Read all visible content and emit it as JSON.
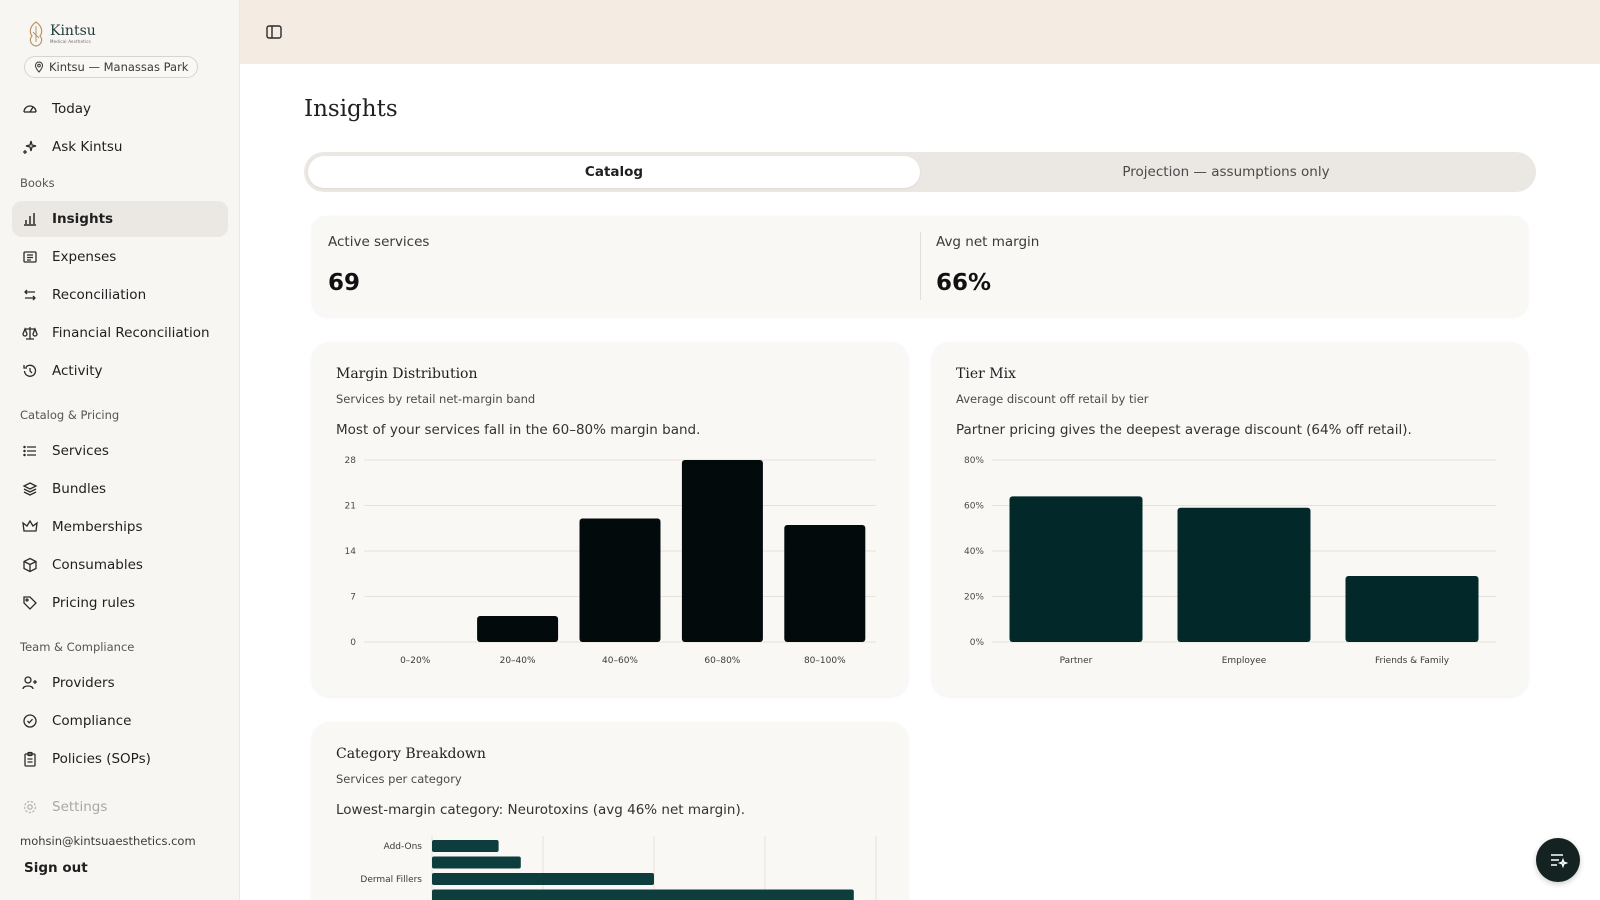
{
  "brand": {
    "name": "Kintsu",
    "tagline": "Medical Aesthetics",
    "location": "Kintsu — Manassas Park"
  },
  "sidebar": {
    "top_items": [
      {
        "label": "Today",
        "icon": "gauge-icon"
      },
      {
        "label": "Ask Kintsu",
        "icon": "sparkle-icon"
      }
    ],
    "sections": [
      {
        "label": "Books",
        "items": [
          {
            "label": "Insights",
            "icon": "bar-chart-icon",
            "active": true
          },
          {
            "label": "Expenses",
            "icon": "receipt-icon"
          },
          {
            "label": "Reconciliation",
            "icon": "arrows-swap-icon"
          },
          {
            "label": "Financial Reconciliation",
            "icon": "scale-icon"
          },
          {
            "label": "Activity",
            "icon": "history-icon"
          }
        ]
      },
      {
        "label": "Catalog & Pricing",
        "items": [
          {
            "label": "Services",
            "icon": "list-icon"
          },
          {
            "label": "Bundles",
            "icon": "layers-icon"
          },
          {
            "label": "Memberships",
            "icon": "crown-icon"
          },
          {
            "label": "Consumables",
            "icon": "box-icon"
          },
          {
            "label": "Pricing rules",
            "icon": "tag-icon"
          }
        ]
      },
      {
        "label": "Team & Compliance",
        "items": [
          {
            "label": "Providers",
            "icon": "user-plus-icon"
          },
          {
            "label": "Compliance",
            "icon": "badge-check-icon"
          },
          {
            "label": "Policies (SOPs)",
            "icon": "clipboard-icon"
          }
        ]
      }
    ],
    "settings_label": "Settings",
    "email": "mohsin@kintsuaesthetics.com",
    "signout_label": "Sign out"
  },
  "main": {
    "title": "Insights",
    "tabs": [
      {
        "label": "Catalog",
        "active": true
      },
      {
        "label": "Projection — assumptions only",
        "active": false
      }
    ],
    "kpis": [
      {
        "label": "Active services",
        "value": "69"
      },
      {
        "label": "Avg net margin",
        "value": "66%"
      }
    ]
  },
  "chart_data": [
    {
      "type": "bar",
      "title": "Margin Distribution",
      "subtitle": "Services by retail net-margin band",
      "insight": "Most of your services fall in the 60–80% margin band.",
      "categories": [
        "0–20%",
        "20–40%",
        "40–60%",
        "60–80%",
        "80–100%"
      ],
      "values": [
        0,
        4,
        19,
        28,
        18
      ],
      "yticks": [
        "0",
        "7",
        "14",
        "21",
        "28"
      ],
      "ylim": [
        0,
        28
      ],
      "grid": true,
      "color": "#030a0b"
    },
    {
      "type": "bar",
      "title": "Tier Mix",
      "subtitle": "Average discount off retail by tier",
      "insight": "Partner pricing gives the deepest average discount (64% off retail).",
      "categories": [
        "Partner",
        "Employee",
        "Friends & Family"
      ],
      "values": [
        64,
        59,
        29
      ],
      "yticks": [
        "0%",
        "20%",
        "40%",
        "60%",
        "80%"
      ],
      "ylim": [
        0,
        80
      ],
      "grid": true,
      "color": "#03282a"
    },
    {
      "type": "bar",
      "orientation": "horizontal",
      "title": "Category Breakdown",
      "subtitle": "Services per category",
      "insight": "Lowest-margin category: Neurotoxins (avg 46% net margin).",
      "categories": [
        "Add-Ons",
        "",
        "Dermal Fillers",
        ""
      ],
      "values": [
        6,
        8,
        20,
        38
      ],
      "xlim": [
        0,
        40
      ],
      "grid": true,
      "color": "#0e3d3d"
    }
  ]
}
